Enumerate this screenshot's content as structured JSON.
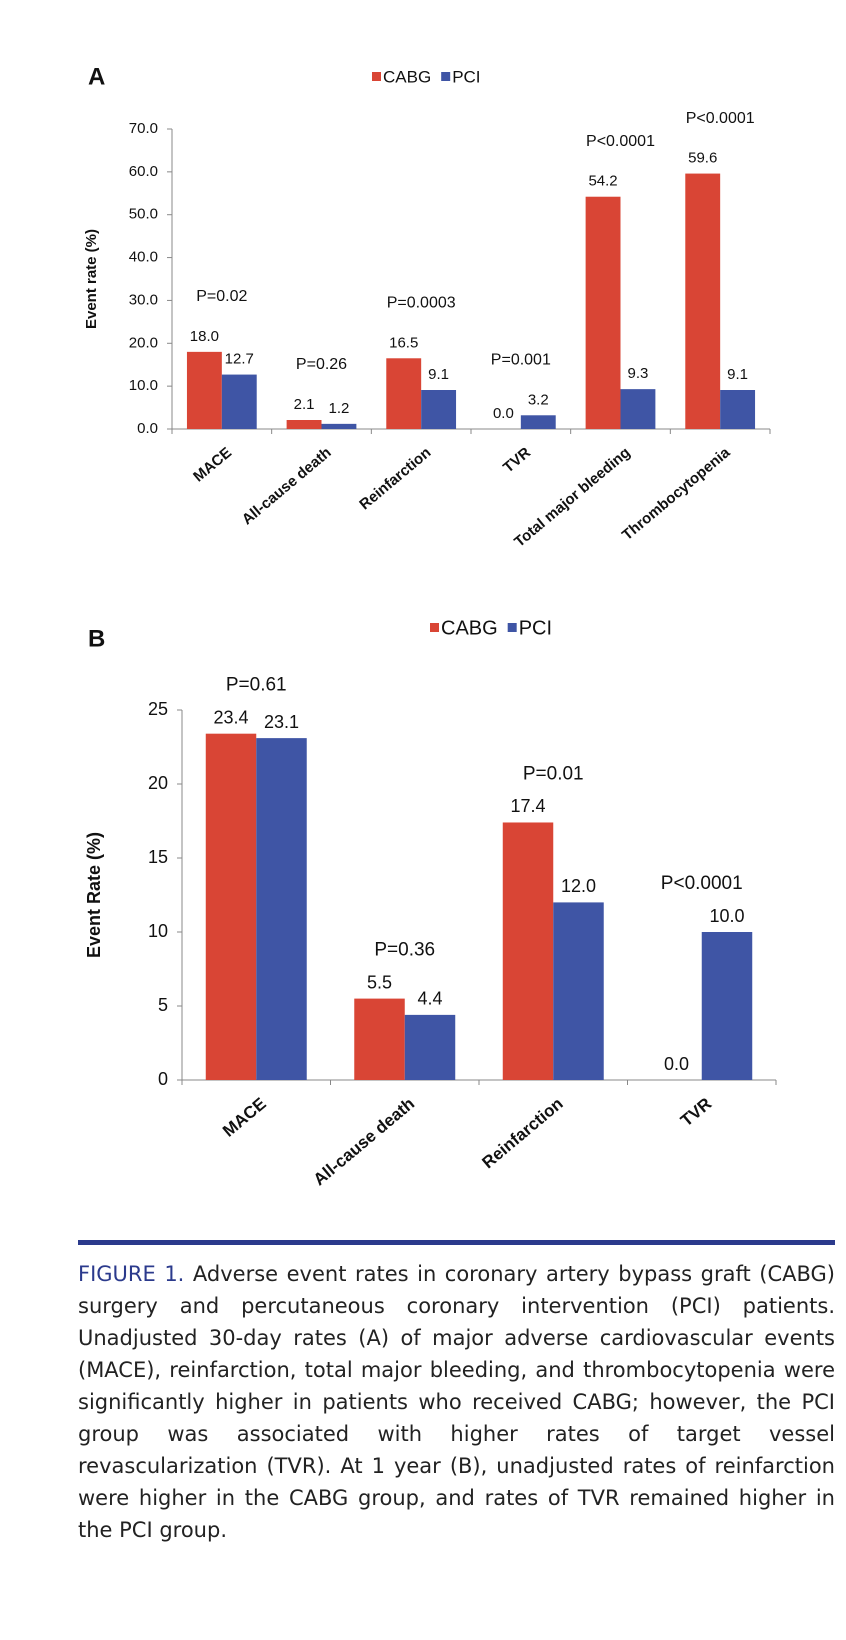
{
  "chart_data": [
    {
      "type": "bar",
      "panel": "A",
      "ylabel": "Event rate (%)",
      "categories": [
        "MACE",
        "All-cause death",
        "Reinfarction",
        "TVR",
        "Total major bleeding",
        "Thrombocytopenia"
      ],
      "series": [
        {
          "name": "CABG",
          "color": "#d94535",
          "values": [
            18.0,
            2.1,
            16.5,
            0.0,
            54.2,
            59.6
          ],
          "value_labels": [
            "18.0",
            "2.1",
            "16.5",
            "0.0",
            "54.2",
            "59.6"
          ]
        },
        {
          "name": "PCI",
          "color": "#3f55a5",
          "values": [
            12.7,
            1.2,
            9.1,
            3.2,
            9.3,
            9.1
          ],
          "value_labels": [
            "12.7",
            "1.2",
            "9.1",
            "3.2",
            "9.3",
            "9.1"
          ]
        }
      ],
      "annotations": [
        "P=0.02",
        "P=0.26",
        "P=0.0003",
        "P=0.001",
        "P<0.0001",
        "P<0.0001"
      ],
      "ylim": [
        0,
        70
      ],
      "yticks": [
        {
          "value": 0,
          "label": "0.0"
        },
        {
          "value": 10,
          "label": "10.0"
        },
        {
          "value": 20,
          "label": "20.0"
        },
        {
          "value": 30,
          "label": "30.0"
        },
        {
          "value": 40,
          "label": "40.0"
        },
        {
          "value": 50,
          "label": "50.0"
        },
        {
          "value": 60,
          "label": "60.0"
        },
        {
          "value": 70,
          "label": "70.0"
        }
      ],
      "grid": false
    },
    {
      "type": "bar",
      "panel": "B",
      "ylabel": "Event Rate (%)",
      "categories": [
        "MACE",
        "All-cause death",
        "Reinfarction",
        "TVR"
      ],
      "series": [
        {
          "name": "CABG",
          "color": "#d94535",
          "values": [
            23.4,
            5.5,
            17.4,
            0.0
          ],
          "value_labels": [
            "23.4",
            "5.5",
            "17.4",
            "0.0"
          ]
        },
        {
          "name": "PCI",
          "color": "#3f55a5",
          "values": [
            23.1,
            4.4,
            12.0,
            10.0
          ],
          "value_labels": [
            "23.1",
            "4.4",
            "12.0",
            "10.0"
          ]
        }
      ],
      "annotations": [
        "P=0.61",
        "P=0.36",
        "P=0.01",
        "P<0.0001"
      ],
      "ylim": [
        0,
        25
      ],
      "yticks": [
        0,
        5,
        10,
        15,
        20,
        25
      ],
      "grid": false
    }
  ],
  "caption": {
    "label": "FIGURE 1.",
    "text": "Adverse event rates in coronary artery bypass graft (CABG) surgery and percutaneous coronary intervention (PCI) patients. Unadjusted 30-day rates (A) of major adverse cardiovascular events (MACE), reinfarction, total major bleeding, and thrombocytopenia were significantly higher in patients who received CABG; however, the PCI group was associated with higher rates of target vessel revascularization (TVR). At 1 year (B), unadjusted rates of reinfarction were higher in the CABG group, and rates of TVR remained higher in the PCI group."
  }
}
